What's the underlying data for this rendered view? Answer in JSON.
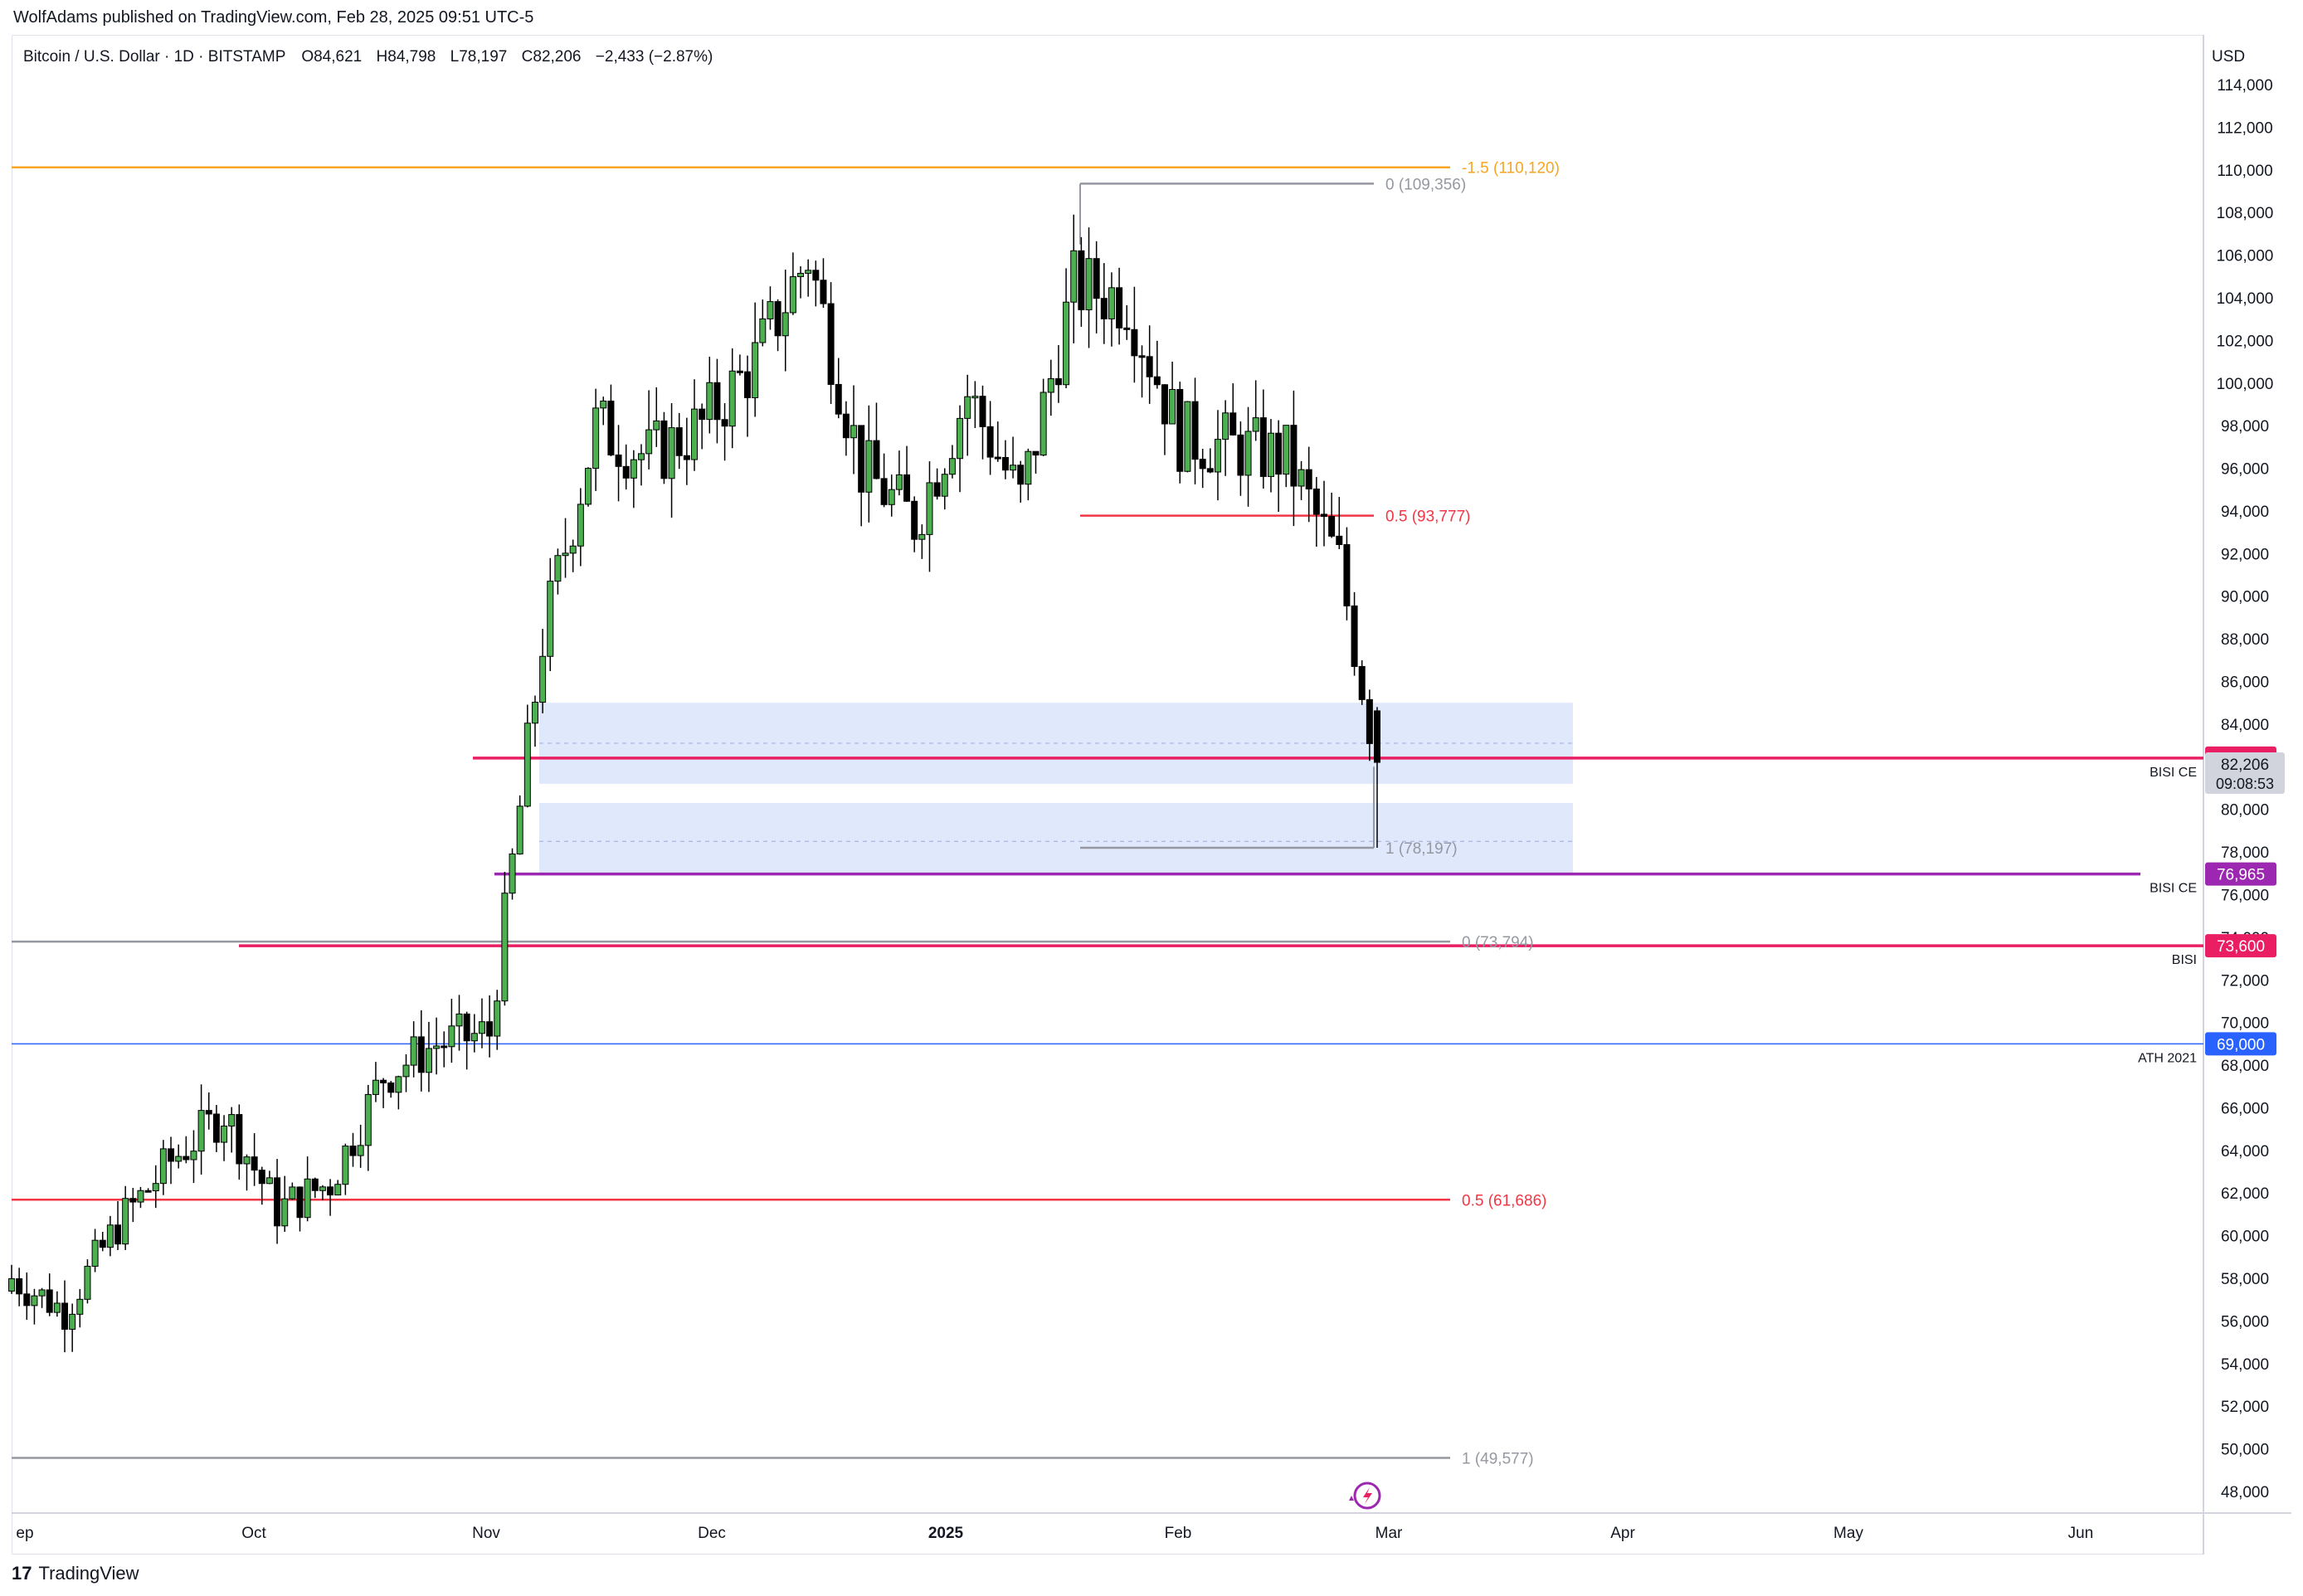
{
  "header": {
    "published": "WolfAdams published on TradingView.com, Feb 28, 2025 09:51 UTC-5"
  },
  "footer": {
    "logo": "17",
    "name": "TradingView"
  },
  "symbol": {
    "title": "Bitcoin / U.S. Dollar · 1D · BITSTAMP",
    "o_label": "O",
    "o_value": "84,621",
    "h_label": "H",
    "h_value": "84,798",
    "l_label": "L",
    "l_value": "78,197",
    "c_label": "C",
    "c_value": "82,206",
    "change": "−2,433 (−2.87%)"
  },
  "colors": {
    "up": "#4caf50",
    "down": "#000000",
    "orange": "#f5a623",
    "red": "#f23645",
    "magenta": "#e91e63",
    "purple": "#9c27b0",
    "blue": "#2962ff",
    "grey": "#9598a1",
    "zone": "#dbe4fb"
  },
  "chart_data": {
    "type": "candlestick",
    "currency": "USD",
    "ylim": [
      46600,
      116200
    ],
    "x_axis_labels": [
      "ep",
      "Oct",
      "Nov",
      "Dec",
      "2025",
      "Feb",
      "Mar",
      "Apr",
      "May",
      "Jun"
    ],
    "y_axis_labels": [
      "114,000",
      "112,000",
      "110,000",
      "108,000",
      "106,000",
      "104,000",
      "102,000",
      "100,000",
      "98,000",
      "96,000",
      "94,000",
      "92,000",
      "90,000",
      "88,000",
      "86,000",
      "84,000",
      "82,000",
      "80,000",
      "78,000",
      "76,000",
      "74,000",
      "72,000",
      "70,000",
      "68,000",
      "66,000",
      "64,000",
      "62,000",
      "60,000",
      "58,000",
      "56,000",
      "54,000",
      "52,000",
      "50,000",
      "48,000"
    ],
    "closes": [
      {
        "date": "2024-09-01",
        "close": 58000
      },
      {
        "date": "2024-09-08",
        "close": 56500
      },
      {
        "date": "2024-09-15",
        "close": 60500
      },
      {
        "date": "2024-09-22",
        "close": 63500
      },
      {
        "date": "2024-09-29",
        "close": 65800
      },
      {
        "date": "2024-10-06",
        "close": 61200
      },
      {
        "date": "2024-10-13",
        "close": 62500
      },
      {
        "date": "2024-10-20",
        "close": 67500
      },
      {
        "date": "2024-10-27",
        "close": 69000
      },
      {
        "date": "2024-11-03",
        "close": 69500
      },
      {
        "date": "2024-11-10",
        "close": 88000
      },
      {
        "date": "2024-11-17",
        "close": 98000
      },
      {
        "date": "2024-11-24",
        "close": 96500
      },
      {
        "date": "2024-12-01",
        "close": 98000
      },
      {
        "date": "2024-12-08",
        "close": 101000
      },
      {
        "date": "2024-12-15",
        "close": 106000
      },
      {
        "date": "2024-12-22",
        "close": 96000
      },
      {
        "date": "2024-12-29",
        "close": 93500
      },
      {
        "date": "2025-01-05",
        "close": 99500
      },
      {
        "date": "2025-01-12",
        "close": 94500
      },
      {
        "date": "2025-01-19",
        "close": 104500
      },
      {
        "date": "2025-01-26",
        "close": 104000
      },
      {
        "date": "2025-02-02",
        "close": 97500
      },
      {
        "date": "2025-02-09",
        "close": 97000
      },
      {
        "date": "2025-02-16",
        "close": 96500
      },
      {
        "date": "2025-02-23",
        "close": 91500
      },
      {
        "date": "2025-02-28",
        "close": 82206
      }
    ],
    "levels": [
      {
        "label": "-1.5 (110,120)",
        "value": 110120,
        "color": "#f5a623"
      },
      {
        "label": "0 (109,356)",
        "value": 109356,
        "color": "#9598a1"
      },
      {
        "label": "0.5 (93,777)",
        "value": 93777,
        "color": "#f23645"
      },
      {
        "label": "1 (78,197)",
        "value": 78197,
        "color": "#9598a1"
      },
      {
        "label": "0 (73,794)",
        "value": 73794,
        "color": "#9598a1"
      },
      {
        "label": "0.5 (61,686)",
        "value": 61686,
        "color": "#f23645"
      },
      {
        "label": "1 (49,577)",
        "value": 49577,
        "color": "#9598a1"
      }
    ],
    "zones": [
      {
        "top": 85000,
        "bottom": 81200,
        "mid": 83100
      },
      {
        "top": 80300,
        "bottom": 77000,
        "mid": 78500
      }
    ],
    "horizontal_lines": [
      {
        "name": "BISI CE",
        "value": 82408,
        "badge": "82,408",
        "color": "#e91e63"
      },
      {
        "name": "BISI CE",
        "value": 76965,
        "badge": "76,965",
        "color": "#9c27b0"
      },
      {
        "name": "BISI",
        "value": 73600,
        "badge": "73,600",
        "color": "#e91e63"
      },
      {
        "name": "ATH 2021",
        "value": 69000,
        "badge": "69,000",
        "color": "#2962ff"
      }
    ],
    "last_price": {
      "value": 82206,
      "label": "82,206",
      "countdown": "09:08:53"
    }
  }
}
